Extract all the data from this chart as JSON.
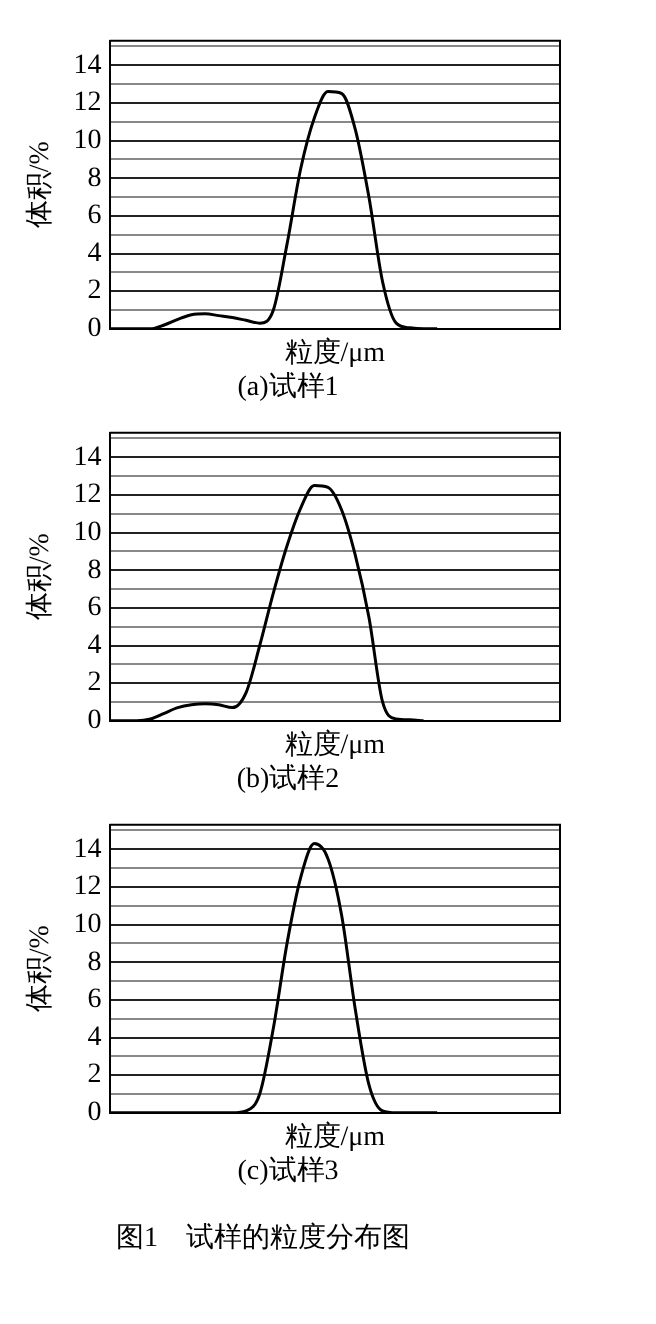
{
  "chart_data": [
    {
      "type": "line",
      "title": "(a)试样1",
      "xlabel": "粒度/μm",
      "ylabel": "体积/%",
      "categories": [
        null,
        null,
        null,
        null,
        null,
        null,
        null,
        null,
        null,
        null,
        null,
        null,
        null,
        null,
        null,
        null,
        null,
        null,
        null,
        null,
        null,
        null,
        null,
        null,
        null,
        null,
        null,
        null,
        null,
        null,
        null,
        null,
        null,
        null
      ],
      "series": [
        {
          "color": "#000000",
          "values": [
            0,
            0,
            0,
            0,
            0.2,
            0.5,
            0.75,
            0.8,
            0.7,
            0.6,
            0.45,
            0.3,
            1.0,
            4.5,
            8.5,
            11.2,
            12.6,
            12.5,
            10.6,
            7.0,
            2.5,
            0.3,
            0.05,
            0,
            0,
            null,
            null,
            null,
            null,
            null,
            null,
            null,
            null,
            null
          ]
        }
      ],
      "ylim": [
        0,
        15.3
      ],
      "yticks": [
        0,
        {
          "value": 1,
          "label": null
        },
        2,
        {
          "value": 3,
          "label": null
        },
        4,
        {
          "value": 5,
          "label": null
        },
        6,
        {
          "value": 7,
          "label": null
        },
        8,
        {
          "value": 9,
          "label": null
        },
        10,
        {
          "value": 11,
          "label": null
        },
        12,
        {
          "value": 13,
          "label": null
        },
        14,
        {
          "value": 15,
          "label": null
        }
      ],
      "grid": "y",
      "marker": "none",
      "line_style": "solid",
      "tick_labels": "y"
    },
    {
      "type": "line",
      "title": "(b)试样2",
      "xlabel": "粒度/μm",
      "ylabel": "体积/%",
      "categories": [
        null,
        null,
        null,
        null,
        null,
        null,
        null,
        null,
        null,
        null,
        null,
        null,
        null,
        null,
        null,
        null,
        null,
        null,
        null,
        null,
        null,
        null,
        null,
        null,
        null,
        null,
        null,
        null,
        null,
        null,
        null,
        null,
        null,
        null
      ],
      "series": [
        {
          "color": "#000000",
          "values": [
            0,
            0,
            0,
            0.1,
            0.4,
            0.7,
            0.85,
            0.9,
            0.85,
            0.7,
            1.5,
            4.0,
            6.8,
            9.3,
            11.3,
            12.5,
            12.4,
            11.2,
            8.8,
            5.5,
            1.0,
            0.1,
            0.05,
            0,
            null,
            null,
            null,
            null,
            null,
            null,
            null,
            null,
            null,
            null
          ]
        }
      ],
      "ylim": [
        0,
        15.3
      ],
      "yticks": [
        0,
        {
          "value": 1,
          "label": null
        },
        2,
        {
          "value": 3,
          "label": null
        },
        4,
        {
          "value": 5,
          "label": null
        },
        6,
        {
          "value": 7,
          "label": null
        },
        8,
        {
          "value": 9,
          "label": null
        },
        10,
        {
          "value": 11,
          "label": null
        },
        12,
        {
          "value": 13,
          "label": null
        },
        14,
        {
          "value": 15,
          "label": null
        }
      ],
      "grid": "y",
      "marker": "none",
      "line_style": "solid",
      "tick_labels": "y"
    },
    {
      "type": "line",
      "title": "(c)试样3",
      "xlabel": "粒度/μm",
      "ylabel": "体积/%",
      "annotations": [
        "图1　试样的粒度分布图"
      ],
      "categories": [
        null,
        null,
        null,
        null,
        null,
        null,
        null,
        null,
        null,
        null,
        null,
        null,
        null,
        null,
        null,
        null,
        null,
        null,
        null,
        null,
        null,
        null,
        null,
        null,
        null,
        null,
        null,
        null,
        null,
        null,
        null,
        null,
        null,
        null
      ],
      "series": [
        {
          "color": "#000000",
          "values": [
            0,
            0,
            0,
            0,
            0,
            0,
            0,
            0,
            0,
            0,
            0.1,
            1.0,
            4.5,
            9.0,
            12.5,
            14.3,
            13.5,
            10.5,
            5.5,
            1.5,
            0.1,
            0,
            0,
            0,
            0,
            null,
            null,
            null,
            null,
            null,
            null,
            null,
            null,
            null
          ]
        }
      ],
      "ylim": [
        0,
        15.3
      ],
      "yticks": [
        0,
        {
          "value": 1,
          "label": null
        },
        2,
        {
          "value": 3,
          "label": null
        },
        4,
        {
          "value": 5,
          "label": null
        },
        6,
        {
          "value": 7,
          "label": null
        },
        8,
        {
          "value": 9,
          "label": null
        },
        10,
        {
          "value": 11,
          "label": null
        },
        12,
        {
          "value": 13,
          "label": null
        },
        14,
        {
          "value": 15,
          "label": null
        }
      ],
      "grid": "y",
      "marker": "none",
      "line_style": "solid",
      "tick_labels": "y"
    }
  ]
}
